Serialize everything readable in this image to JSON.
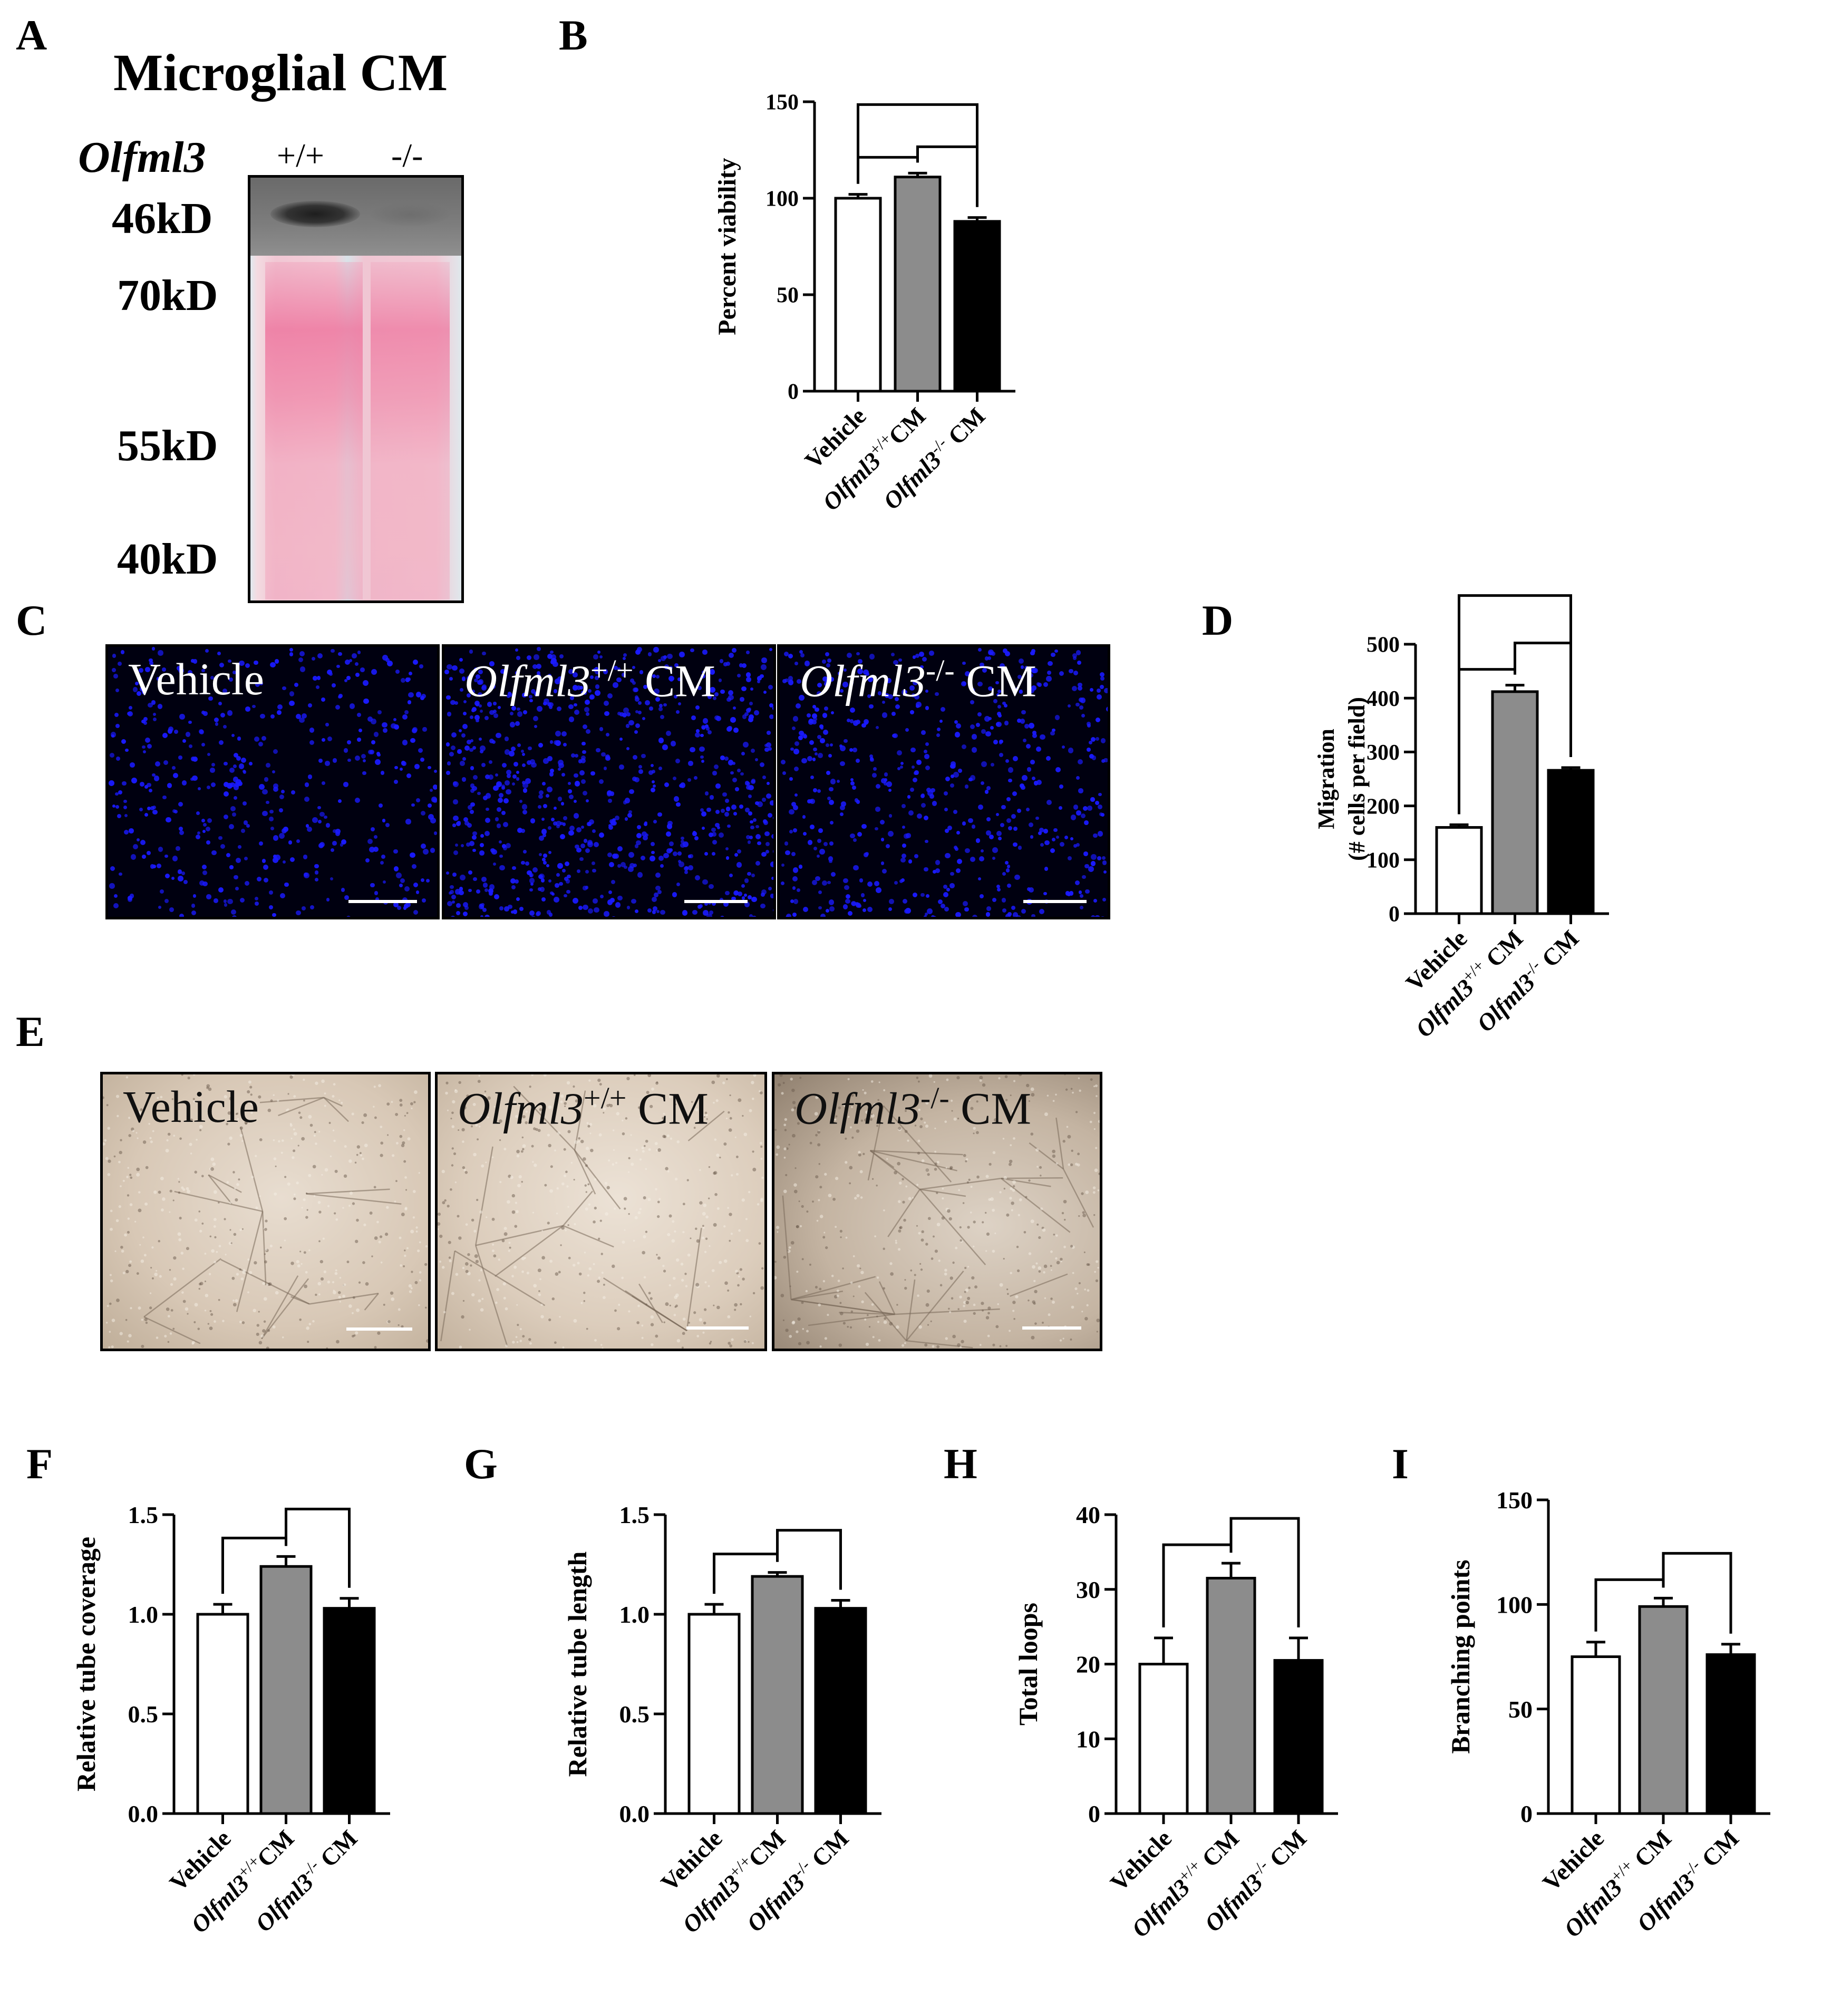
{
  "panel_letters": [
    "A",
    "B",
    "C",
    "D",
    "E",
    "F",
    "G",
    "H",
    "I"
  ],
  "blot": {
    "title": "Microglial CM",
    "gene": "Olfml3",
    "lanes": [
      "+/+",
      "-/-"
    ],
    "markers": [
      "46kD",
      "70kD",
      "55kD",
      "40kD"
    ]
  },
  "images_c": {
    "labels": [
      {
        "gene": "",
        "sup": "",
        "text": "Vehicle"
      },
      {
        "gene": "Olfml3",
        "sup": "+/+",
        "text": " CM"
      },
      {
        "gene": "Olfml3",
        "sup": "-/-",
        "text": " CM"
      }
    ]
  },
  "images_e": {
    "labels": [
      {
        "gene": "",
        "sup": "",
        "text": "Vehicle"
      },
      {
        "gene": "Olfml3",
        "sup": "+/+",
        "text": " CM"
      },
      {
        "gene": "Olfml3",
        "sup": "-/-",
        "text": " CM"
      }
    ]
  },
  "tick_labels": {
    "vehicle": "Vehicle",
    "gene": "Olfml3",
    "wt_sup": "+/+",
    "ko_sup": "-/-",
    "cm": "CM"
  },
  "colors": {
    "vehicle": "#ffffff",
    "wt": "#8c8c8c",
    "ko": "#000000",
    "nuclei": "#1a1aff",
    "blot_pink": "#f2a8bf"
  },
  "chart_data": [
    {
      "panel": "B",
      "type": "bar",
      "categories": [
        "Vehicle",
        "Olfml3+/+CM",
        "Olfml3-/- CM"
      ],
      "values": [
        100,
        111,
        88
      ],
      "errors": [
        2,
        2,
        2
      ],
      "ylabel": "Percent viability",
      "ylim": [
        0,
        150
      ],
      "yticks": [
        0,
        50,
        100,
        150
      ],
      "brackets": [
        [
          0,
          1
        ],
        [
          0,
          2
        ],
        [
          1,
          2
        ]
      ]
    },
    {
      "panel": "D",
      "type": "bar",
      "categories": [
        "Vehicle",
        "Olfml3+/+ CM",
        "Olfml3-/- CM"
      ],
      "values": [
        160,
        412,
        266
      ],
      "errors": [
        5,
        12,
        5
      ],
      "ylabel_lines": [
        "Migration",
        "(# cells per field)"
      ],
      "ylim": [
        0,
        500
      ],
      "yticks": [
        0,
        100,
        200,
        300,
        400,
        500
      ],
      "brackets": [
        [
          0,
          1
        ],
        [
          0,
          2
        ],
        [
          1,
          2
        ]
      ]
    },
    {
      "panel": "F",
      "type": "bar",
      "categories": [
        "Vehicle",
        "Olfml3+/+CM",
        "Olfml3-/- CM"
      ],
      "values": [
        1.0,
        1.24,
        1.03
      ],
      "errors": [
        0.05,
        0.05,
        0.05
      ],
      "ylabel": "Relative tube coverage",
      "ylim": [
        0,
        1.5
      ],
      "yticks": [
        0.0,
        0.5,
        1.0,
        1.5
      ],
      "brackets": [
        [
          0,
          1
        ],
        [
          1,
          2
        ]
      ]
    },
    {
      "panel": "G",
      "type": "bar",
      "categories": [
        "Vehicle",
        "Olfml3+/+CM",
        "Olfml3-/- CM"
      ],
      "values": [
        1.0,
        1.19,
        1.03
      ],
      "errors": [
        0.05,
        0.02,
        0.04
      ],
      "ylabel": "Relative tube length",
      "ylim": [
        0,
        1.5
      ],
      "yticks": [
        0.0,
        0.5,
        1.0,
        1.5
      ],
      "brackets": [
        [
          0,
          1
        ],
        [
          1,
          2
        ]
      ]
    },
    {
      "panel": "H",
      "type": "bar",
      "categories": [
        "Vehicle",
        "Olfml3+/+ CM",
        "Olfml3-/- CM"
      ],
      "values": [
        20,
        31.5,
        20.5
      ],
      "errors": [
        3.5,
        2,
        3
      ],
      "ylabel": "Total loops",
      "ylim": [
        0,
        40
      ],
      "yticks": [
        0,
        10,
        20,
        30,
        40
      ],
      "brackets": [
        [
          0,
          1
        ],
        [
          1,
          2
        ]
      ]
    },
    {
      "panel": "I",
      "type": "bar",
      "categories": [
        "Vehicle",
        "Olfml3+/+ CM",
        "Olfml3-/- CM"
      ],
      "values": [
        75,
        99,
        76
      ],
      "errors": [
        7,
        4,
        5
      ],
      "ylabel": "Branching points",
      "ylim": [
        0,
        150
      ],
      "yticks": [
        0,
        50,
        100,
        150
      ],
      "brackets": [
        [
          0,
          1
        ],
        [
          1,
          2
        ]
      ]
    }
  ]
}
